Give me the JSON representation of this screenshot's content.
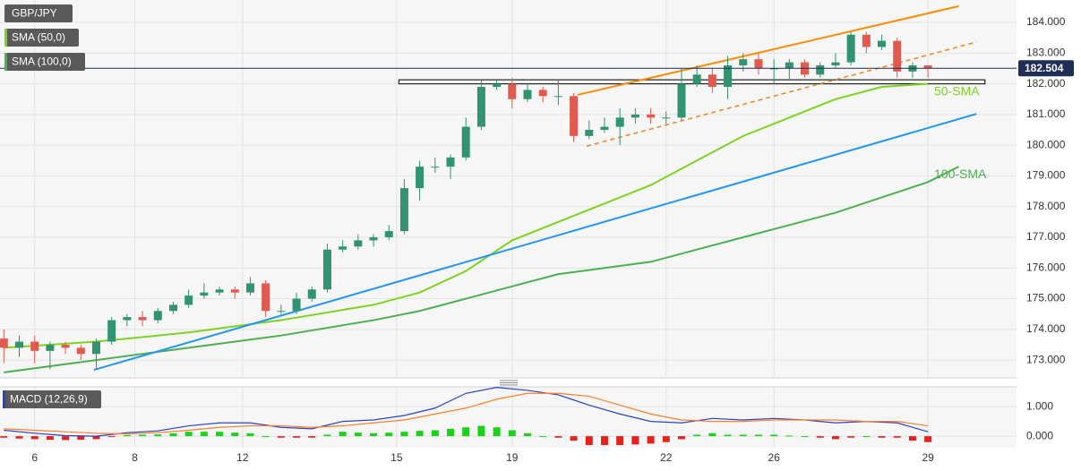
{
  "chart_data": [
    {
      "type": "candlestick",
      "title": "GBP/JPY",
      "x": [
        0,
        2,
        4,
        6,
        8,
        10,
        12,
        14,
        16,
        18,
        20,
        22,
        24,
        26,
        28,
        30,
        32,
        34,
        36,
        38,
        40,
        42,
        44,
        46,
        48,
        50,
        52,
        54,
        56,
        58,
        60,
        62,
        64,
        66,
        68,
        70,
        72,
        74,
        76,
        78,
        80,
        82,
        84,
        86,
        88,
        90,
        92,
        94,
        96,
        98,
        100,
        102,
        104,
        106,
        108,
        110,
        112,
        114,
        116,
        118,
        120
      ],
      "open": [
        173.7,
        173.4,
        173.6,
        173.3,
        173.5,
        173.4,
        173.2,
        173.6,
        174.3,
        174.4,
        174.3,
        174.6,
        174.8,
        175.1,
        175.2,
        175.3,
        175.2,
        175.5,
        174.6,
        174.6,
        175.0,
        175.3,
        176.6,
        176.7,
        176.9,
        177.0,
        177.2,
        178.6,
        179.3,
        179.3,
        179.6,
        180.6,
        181.9,
        182.0,
        181.5,
        181.8,
        181.6,
        181.6,
        180.3,
        180.5,
        180.6,
        180.9,
        181.0,
        180.9,
        180.9,
        182.0,
        182.3,
        181.9,
        182.6,
        182.8,
        182.5,
        182.5,
        182.7,
        182.3,
        182.6,
        182.7,
        183.6,
        183.2,
        183.4,
        182.4,
        182.6
      ],
      "high": [
        174.0,
        173.8,
        173.8,
        173.6,
        173.6,
        173.5,
        173.7,
        174.4,
        174.5,
        174.6,
        174.7,
        174.9,
        175.3,
        175.5,
        175.4,
        175.4,
        175.7,
        175.6,
        174.8,
        175.2,
        175.4,
        176.8,
        176.9,
        177.1,
        177.1,
        177.4,
        178.9,
        179.5,
        179.6,
        179.7,
        180.9,
        182.1,
        182.1,
        182.2,
        182.0,
        181.9,
        182.1,
        181.7,
        180.8,
        180.9,
        181.2,
        181.2,
        181.2,
        181.1,
        182.5,
        182.6,
        182.5,
        182.9,
        183.0,
        183.0,
        182.8,
        182.8,
        182.8,
        182.7,
        183.0,
        183.7,
        183.7,
        183.6,
        183.5,
        182.7,
        182.6
      ],
      "low": [
        172.9,
        173.1,
        172.9,
        172.7,
        173.2,
        173.0,
        172.7,
        173.5,
        174.1,
        174.1,
        174.2,
        174.5,
        174.7,
        175.0,
        175.1,
        175.0,
        175.1,
        174.4,
        174.5,
        174.5,
        174.9,
        175.2,
        176.5,
        176.6,
        176.7,
        176.9,
        177.1,
        178.2,
        179.1,
        178.9,
        179.5,
        180.5,
        181.8,
        181.2,
        181.4,
        181.4,
        181.3,
        180.1,
        180.2,
        180.4,
        180.0,
        180.7,
        180.7,
        180.7,
        180.8,
        181.9,
        181.7,
        181.5,
        182.4,
        182.3,
        182.0,
        182.1,
        182.2,
        182.2,
        182.5,
        182.6,
        183.0,
        183.1,
        182.2,
        182.2,
        182.2
      ],
      "close": [
        173.4,
        173.6,
        173.3,
        173.5,
        173.4,
        173.2,
        173.6,
        174.3,
        174.4,
        174.3,
        174.6,
        174.8,
        175.1,
        175.2,
        175.3,
        175.2,
        175.5,
        174.6,
        174.6,
        175.0,
        175.3,
        176.6,
        176.7,
        176.9,
        177.0,
        177.2,
        178.6,
        179.3,
        179.3,
        179.6,
        180.6,
        181.9,
        182.0,
        181.5,
        181.8,
        181.6,
        181.6,
        180.3,
        180.5,
        180.6,
        180.9,
        181.0,
        180.9,
        180.9,
        182.0,
        182.3,
        181.9,
        182.6,
        182.8,
        182.5,
        182.5,
        182.7,
        182.3,
        182.6,
        182.7,
        183.6,
        183.2,
        183.4,
        182.4,
        182.6,
        182.5
      ],
      "up_color": "#31936f",
      "down_color": "#e05a4f",
      "lines": [
        {
          "name": "SMA (50,0)",
          "label": "50-SMA",
          "color": "#7ed321",
          "x": [
            0,
            12,
            24,
            36,
            48,
            54,
            60,
            66,
            72,
            78,
            84,
            90,
            96,
            102,
            108,
            114,
            120
          ],
          "values": [
            173.4,
            173.6,
            173.9,
            174.3,
            174.8,
            175.2,
            175.9,
            176.9,
            177.5,
            178.1,
            178.7,
            179.5,
            180.3,
            180.9,
            181.5,
            181.9,
            182.0
          ]
        },
        {
          "name": "SMA (100,0)",
          "label": "100-SMA",
          "color": "#4caf50",
          "x": [
            0,
            12,
            24,
            36,
            48,
            54,
            60,
            66,
            72,
            84,
            90,
            96,
            102,
            108,
            114,
            120,
            124
          ],
          "values": [
            172.6,
            173.0,
            173.4,
            173.8,
            174.3,
            174.6,
            175.0,
            175.4,
            175.8,
            176.2,
            176.6,
            177.0,
            177.4,
            177.8,
            178.3,
            178.8,
            179.3
          ]
        }
      ],
      "trendlines": [
        {
          "color": "#2196f3",
          "dashed": false,
          "x": [
            11.7,
            126.3
          ],
          "values": [
            172.68,
            181.02
          ]
        },
        {
          "color": "#ff8c00",
          "dashed": false,
          "x": [
            74.5,
            124
          ],
          "values": [
            181.64,
            184.53
          ]
        },
        {
          "color": "#f0892a",
          "dashed": true,
          "x": [
            75.7,
            126.3
          ],
          "values": [
            179.97,
            183.36
          ]
        }
      ],
      "zone": {
        "x": [
          51.3,
          127.4
        ],
        "values": [
          182.0,
          182.13
        ]
      },
      "current_price": 182.504,
      "current_color": "#1f2d57",
      "xlim": [
        -0.5,
        131.5
      ],
      "ylim": [
        172.42,
        184.73
      ],
      "yticks": [
        {
          "value": 173,
          "label": "173.000"
        },
        {
          "value": 174,
          "label": "174.000"
        },
        {
          "value": 175,
          "label": "175.000"
        },
        {
          "value": 176,
          "label": "176.000"
        },
        {
          "value": 177,
          "label": "177.000"
        },
        {
          "value": 178,
          "label": "178.000"
        },
        {
          "value": 179,
          "label": "179.000"
        },
        {
          "value": 180,
          "label": "180.000"
        },
        {
          "value": 181,
          "label": "181.000"
        },
        {
          "value": 182,
          "label": "182.000"
        },
        {
          "value": 183,
          "label": "183.000"
        },
        {
          "value": 184,
          "label": "184.000"
        }
      ],
      "grid": true
    },
    {
      "type": "macd",
      "title": "MACD (12,26,9)",
      "x": [
        0,
        4,
        8,
        12,
        16,
        20,
        24,
        28,
        32,
        36,
        40,
        44,
        48,
        52,
        56,
        60,
        64,
        68,
        72,
        76,
        80,
        84,
        88,
        92,
        96,
        100,
        104,
        108,
        112,
        116,
        120
      ],
      "series": [
        {
          "color": "#2a41c8",
          "values": [
            0.2,
            0.1,
            0.02,
            0.0,
            0.12,
            0.18,
            0.35,
            0.45,
            0.45,
            0.3,
            0.25,
            0.5,
            0.55,
            0.7,
            0.95,
            1.45,
            1.65,
            1.55,
            1.4,
            1.05,
            0.75,
            0.5,
            0.45,
            0.6,
            0.55,
            0.6,
            0.55,
            0.45,
            0.5,
            0.45,
            0.15
          ]
        },
        {
          "color": "#ff7f27",
          "values": [
            0.25,
            0.2,
            0.15,
            0.1,
            0.08,
            0.12,
            0.2,
            0.3,
            0.35,
            0.35,
            0.3,
            0.35,
            0.45,
            0.55,
            0.75,
            0.95,
            1.25,
            1.45,
            1.45,
            1.35,
            1.05,
            0.75,
            0.55,
            0.5,
            0.5,
            0.55,
            0.55,
            0.55,
            0.5,
            0.5,
            0.35
          ]
        }
      ],
      "histogram": {
        "up_color": "#19d219",
        "down_color": "#e8201c",
        "x": [
          0,
          2,
          4,
          6,
          8,
          10,
          12,
          14,
          16,
          18,
          20,
          22,
          24,
          26,
          28,
          30,
          32,
          34,
          36,
          38,
          40,
          42,
          44,
          46,
          48,
          50,
          52,
          54,
          56,
          58,
          60,
          62,
          64,
          66,
          68,
          70,
          72,
          74,
          76,
          78,
          80,
          82,
          84,
          86,
          88,
          90,
          92,
          94,
          96,
          98,
          100,
          102,
          104,
          106,
          108,
          110,
          112,
          114,
          116,
          118,
          120
        ],
        "values": [
          -0.05,
          -0.08,
          -0.1,
          -0.12,
          -0.13,
          -0.12,
          -0.1,
          -0.03,
          0.04,
          0.05,
          0.06,
          0.1,
          0.15,
          0.15,
          0.15,
          0.12,
          0.1,
          0.0,
          -0.05,
          -0.05,
          -0.05,
          0.05,
          0.15,
          0.12,
          0.1,
          0.12,
          0.15,
          0.18,
          0.2,
          0.25,
          0.3,
          0.35,
          0.3,
          0.2,
          0.1,
          0.0,
          -0.05,
          -0.15,
          -0.3,
          -0.3,
          -0.3,
          -0.28,
          -0.25,
          -0.2,
          -0.1,
          0.05,
          0.1,
          0.05,
          0.05,
          0.05,
          0.05,
          0.02,
          0.0,
          -0.05,
          -0.1,
          -0.05,
          0.0,
          -0.05,
          -0.05,
          -0.15,
          -0.2
        ]
      },
      "xlim": [
        -0.5,
        131.5
      ],
      "ylim": [
        -0.39,
        1.67
      ],
      "yticks": [
        {
          "value": 0,
          "label": "0.000"
        },
        {
          "value": 1,
          "label": "1.000"
        }
      ],
      "xticks": [
        {
          "value": 4,
          "label": "6"
        },
        {
          "value": 17,
          "label": "8"
        },
        {
          "value": 31,
          "label": "12"
        },
        {
          "value": 51,
          "label": "15"
        },
        {
          "value": 66,
          "label": "19"
        },
        {
          "value": 86,
          "label": "22"
        },
        {
          "value": 100,
          "label": "26"
        },
        {
          "value": 120,
          "label": "29"
        }
      ],
      "grid": true
    }
  ]
}
